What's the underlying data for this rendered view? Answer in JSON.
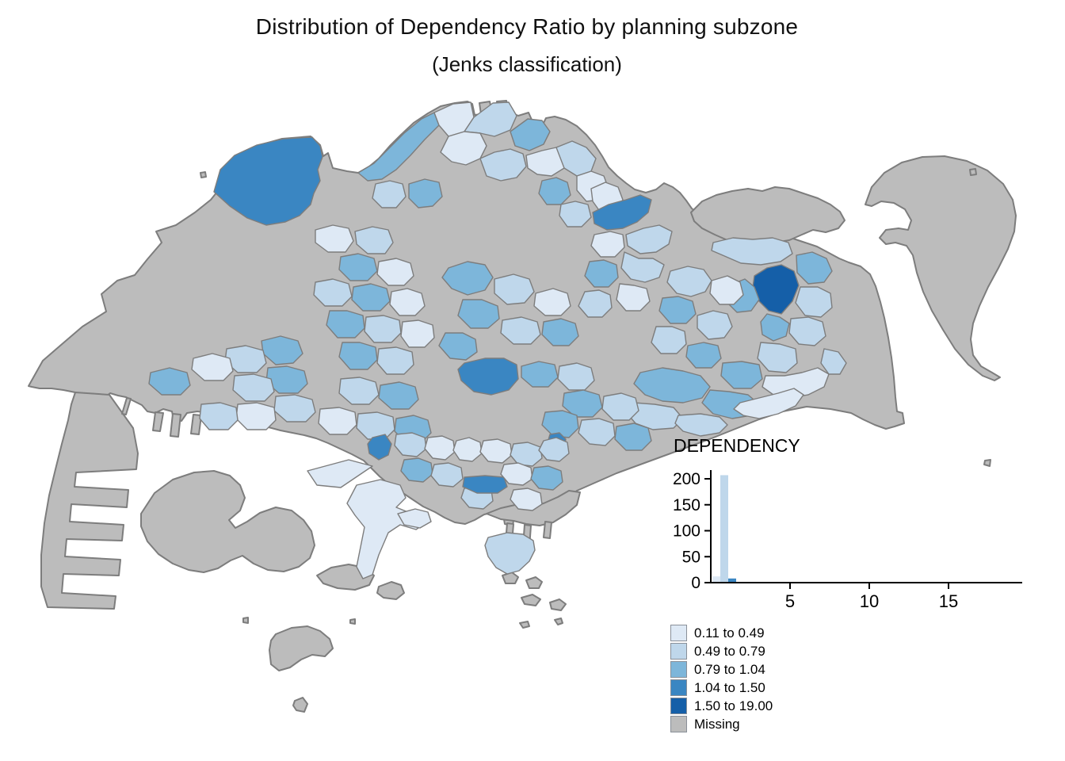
{
  "title": {
    "line1": "Distribution of Dependency Ratio by planning subzone",
    "line2": "(Jenks classification)"
  },
  "inset": {
    "title": "DEPENDENCY"
  },
  "chart_data": {
    "type": "bar",
    "title": "DEPENDENCY",
    "xlabel": "",
    "ylabel": "",
    "xlim": [
      0,
      19.5
    ],
    "ylim": [
      0,
      215
    ],
    "grid": false,
    "x_ticks": [
      5,
      10,
      15
    ],
    "y_ticks": [
      0,
      50,
      100,
      150,
      200
    ],
    "bins": [
      {
        "from": 0.11,
        "to": 0.6,
        "count": 12,
        "color": "#dee9f5"
      },
      {
        "from": 0.6,
        "to": 1.1,
        "count": 207,
        "color": "#bfd7eb"
      },
      {
        "from": 1.1,
        "to": 1.6,
        "count": 8,
        "color": "#3a86c2"
      }
    ]
  },
  "legend": {
    "items": [
      {
        "label": "0.11 to 0.49",
        "color": "#dee9f5"
      },
      {
        "label": "0.49 to 0.79",
        "color": "#bfd7eb"
      },
      {
        "label": "0.79 to 1.04",
        "color": "#7db6da"
      },
      {
        "label": "1.04 to 1.50",
        "color": "#3a86c2"
      },
      {
        "label": "1.50 to 19.00",
        "color": "#155fa8"
      },
      {
        "label": "Missing",
        "color": "#bcbcbc"
      }
    ]
  },
  "map": {
    "sea_color": "#ffffff",
    "border_color": "#7d7d7d",
    "class_colors": {
      "c1": "#dee9f5",
      "c2": "#bfd7eb",
      "c3": "#7db6da",
      "c4": "#3a86c2",
      "c5": "#155fa8",
      "miss": "#bcbcbc"
    }
  }
}
